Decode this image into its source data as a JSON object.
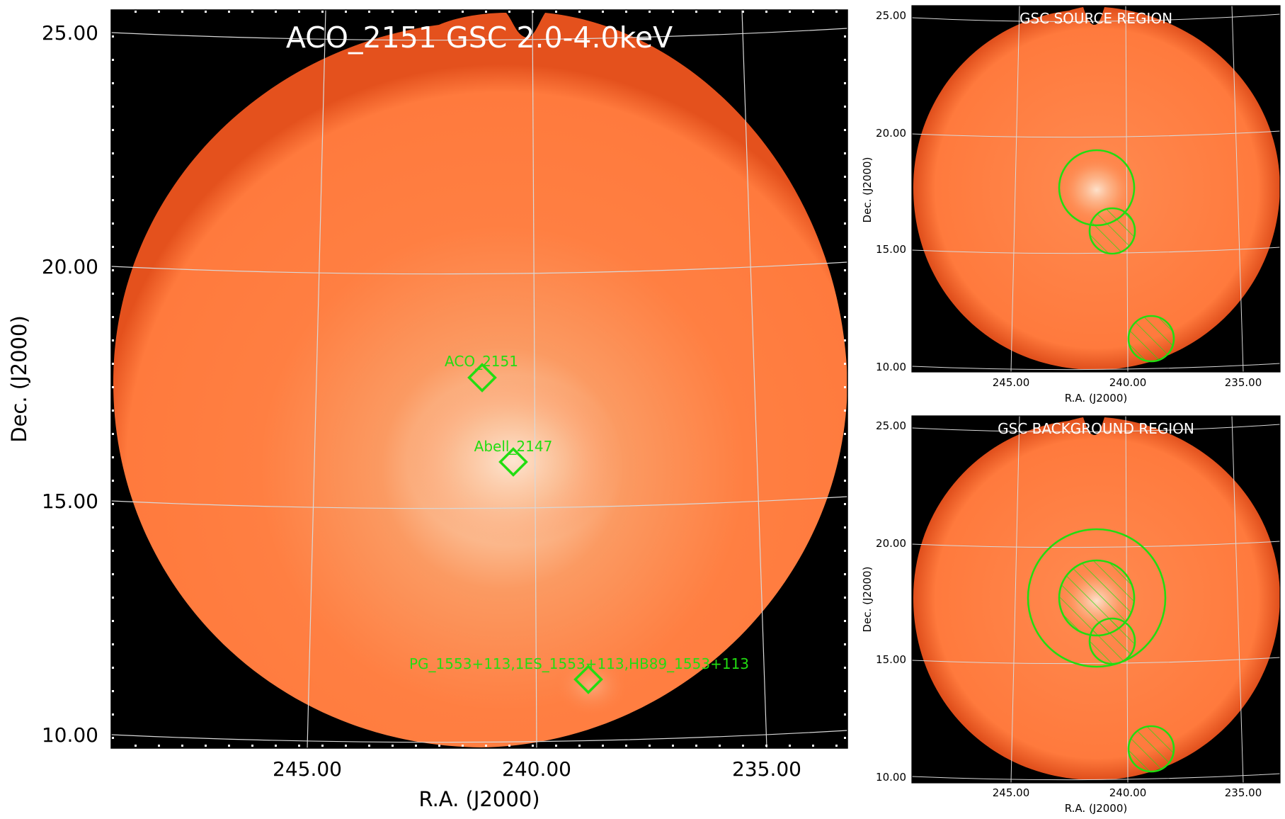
{
  "colors": {
    "sky_center": "#fde2cc",
    "sky_mid": "#f9a26a",
    "sky_main": "#ff7a3d",
    "sky_edge": "#e8541e",
    "background": "#000000",
    "grid": "#d8d8d8",
    "region": "#22dd11",
    "title_text": "#ffffff"
  },
  "main_panel": {
    "title": "ACO_2151 GSC 2.0-4.0keV",
    "xlabel": "R.A. (J2000)",
    "ylabel": "Dec. (J2000)",
    "x_ticks": [
      "245.00",
      "240.00",
      "235.00"
    ],
    "y_ticks": [
      "25.00",
      "20.00",
      "15.00",
      "10.00"
    ],
    "sources": [
      {
        "label": "ACO_2151",
        "ra": 241.2,
        "dec": 17.7
      },
      {
        "label": "Abell_2147",
        "ra": 240.5,
        "dec": 15.8
      },
      {
        "label": "PG_1553+113,1ES_1553+113,HB89_1553+113",
        "ra": 238.9,
        "dec": 11.2
      }
    ]
  },
  "source_panel": {
    "title": "GSC SOURCE REGION",
    "xlabel": "R.A. (J2000)",
    "ylabel": "Dec. (J2000)",
    "x_ticks": [
      "245.00",
      "240.00",
      "235.00"
    ],
    "y_ticks": [
      "25.00",
      "20.00",
      "15.00",
      "10.00"
    ]
  },
  "background_panel": {
    "title": "GSC BACKGROUND REGION",
    "xlabel": "R.A. (J2000)",
    "ylabel": "Dec. (J2000)",
    "x_ticks": [
      "245.00",
      "240.00",
      "235.00"
    ],
    "y_ticks": [
      "25.00",
      "20.00",
      "15.00",
      "10.00"
    ]
  }
}
